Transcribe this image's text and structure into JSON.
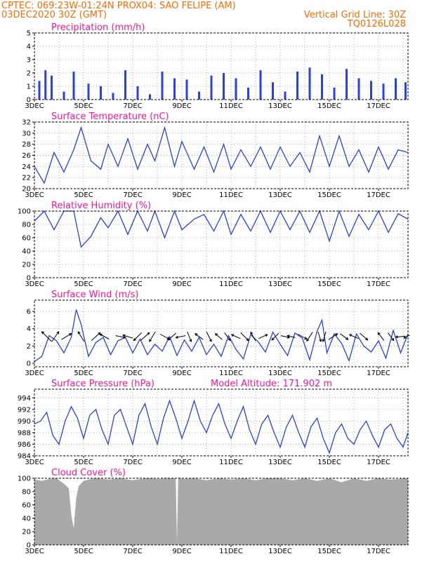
{
  "header": {
    "line1_left": "CPTEC:   069:23W-01:24N   PROX04: SAO FELIPE (AM)",
    "line2_left": "03DEC2020 30Z (GMT)",
    "line2_right": "Vertical Grid Line: 30Z",
    "line3_right": "TQ0126L028"
  },
  "colors": {
    "header": "#ff6a00",
    "panel_title": "#ff1493",
    "line": "#2a3fe8",
    "cloud": "#a9a9a9"
  },
  "x_tick_labels": [
    "3DEC",
    "5DEC",
    "7DEC",
    "9DEC",
    "11DEC",
    "13DEC",
    "15DEC",
    "17DEC"
  ],
  "chart_data": [
    {
      "id": "precip",
      "type": "bar",
      "title": "Precipitation (mm/h)",
      "x_range_days": [
        3,
        18.2
      ],
      "ylim": [
        0,
        5
      ],
      "yticks": [
        "0",
        "1",
        "2",
        "3",
        "4",
        "5"
      ],
      "x": [
        3.2,
        3.45,
        3.7,
        4.2,
        4.6,
        5.2,
        5.7,
        6.2,
        6.7,
        7.2,
        7.7,
        8.2,
        8.7,
        9.2,
        9.7,
        10.2,
        10.7,
        11.2,
        11.7,
        12.2,
        12.7,
        13.2,
        13.7,
        14.2,
        14.7,
        15.2,
        15.7,
        16.2,
        16.7,
        17.2,
        17.7,
        18.1
      ],
      "values": [
        1.4,
        2.2,
        1.8,
        0.6,
        2.1,
        1.2,
        1.0,
        0.5,
        2.2,
        1.0,
        0.4,
        2.1,
        1.6,
        1.5,
        0.6,
        1.8,
        2.0,
        1.6,
        0.9,
        2.2,
        1.3,
        0.6,
        2.1,
        2.4,
        1.9,
        0.9,
        2.3,
        1.6,
        1.4,
        1.2,
        1.6,
        1.3
      ]
    },
    {
      "id": "temp",
      "type": "line",
      "title": "Surface Temperature (nC)",
      "x_range_days": [
        3,
        18.2
      ],
      "ylim": [
        20,
        32
      ],
      "yticks": [
        "20",
        "22",
        "24",
        "26",
        "28",
        "30",
        "32"
      ],
      "x": [
        3.0,
        3.4,
        3.8,
        4.2,
        4.6,
        4.9,
        5.3,
        5.7,
        6.0,
        6.4,
        6.8,
        7.2,
        7.6,
        7.9,
        8.3,
        8.7,
        9.0,
        9.5,
        9.9,
        10.3,
        10.7,
        11.0,
        11.4,
        11.8,
        12.2,
        12.6,
        13.0,
        13.4,
        13.8,
        14.2,
        14.6,
        15.0,
        15.4,
        15.8,
        16.2,
        16.6,
        17.0,
        17.4,
        17.8,
        18.2
      ],
      "values": [
        24,
        21,
        26.5,
        23,
        27,
        31,
        25,
        23.5,
        28,
        24,
        29,
        23.5,
        28,
        25,
        31,
        24,
        28.5,
        23.5,
        27.5,
        23,
        28,
        23.5,
        27,
        24,
        27.5,
        23.5,
        27.5,
        24,
        26.5,
        23,
        29.5,
        24,
        29.5,
        24,
        27,
        23,
        27.5,
        23.5,
        27,
        26.5
      ]
    },
    {
      "id": "rh",
      "type": "line",
      "title": "Relative Humidity (%)",
      "x_range_days": [
        3,
        18.2
      ],
      "ylim": [
        0,
        100
      ],
      "yticks": [
        "0",
        "20",
        "40",
        "60",
        "80",
        "100"
      ],
      "x": [
        3.0,
        3.4,
        3.8,
        4.2,
        4.6,
        4.9,
        5.3,
        5.7,
        6.0,
        6.4,
        6.8,
        7.2,
        7.6,
        7.9,
        8.3,
        8.7,
        9.0,
        9.5,
        9.9,
        10.3,
        10.7,
        11.0,
        11.4,
        11.8,
        12.2,
        12.6,
        13.0,
        13.4,
        13.8,
        14.2,
        14.6,
        15.0,
        15.4,
        15.8,
        16.2,
        16.6,
        17.0,
        17.4,
        17.8,
        18.2
      ],
      "values": [
        85,
        100,
        72,
        100,
        100,
        46,
        62,
        90,
        75,
        100,
        65,
        100,
        70,
        100,
        60,
        100,
        72,
        88,
        95,
        70,
        100,
        65,
        95,
        70,
        100,
        68,
        100,
        72,
        100,
        68,
        100,
        55,
        100,
        62,
        95,
        72,
        100,
        68,
        96,
        88
      ]
    },
    {
      "id": "wind",
      "type": "line",
      "title": "Surface Wind (m/s)",
      "x_range_days": [
        3,
        18.2
      ],
      "ylim": [
        -0.4,
        7.3
      ],
      "yticks": [
        "0",
        "2",
        "4",
        "6"
      ],
      "x": [
        3.0,
        3.3,
        3.6,
        3.9,
        4.2,
        4.5,
        4.7,
        4.9,
        5.2,
        5.5,
        5.8,
        6.1,
        6.4,
        6.7,
        7.0,
        7.3,
        7.6,
        7.9,
        8.2,
        8.5,
        8.8,
        9.1,
        9.4,
        9.7,
        10.0,
        10.3,
        10.6,
        10.9,
        11.2,
        11.5,
        11.8,
        12.1,
        12.4,
        12.7,
        13.0,
        13.3,
        13.6,
        13.9,
        14.2,
        14.5,
        14.7,
        14.9,
        15.2,
        15.5,
        15.8,
        16.1,
        16.4,
        16.7,
        17.0,
        17.3,
        17.6,
        17.9,
        18.2
      ],
      "values": [
        0.2,
        0.8,
        3.2,
        2.6,
        1.2,
        3.0,
        6.2,
        4.5,
        0.8,
        2.4,
        3.0,
        1.0,
        2.6,
        3.0,
        1.2,
        2.8,
        1.0,
        2.2,
        1.4,
        3.1,
        0.9,
        2.7,
        1.4,
        3.0,
        1.0,
        2.2,
        0.8,
        3.2,
        1.6,
        0.5,
        3.3,
        2.5,
        1.3,
        3.6,
        2.2,
        0.9,
        3.5,
        2.9,
        0.4,
        3.7,
        5.0,
        1.2,
        3.4,
        2.3,
        0.3,
        3.4,
        2.0,
        1.3,
        2.6,
        0.6,
        3.8,
        1.2,
        3.4
      ]
    },
    {
      "id": "press",
      "type": "line",
      "title": "Surface Pressure (hPa)",
      "annotation": "Model Altitude: 171.902 m",
      "x_range_days": [
        3,
        18.2
      ],
      "ylim": [
        984,
        995.5
      ],
      "yticks": [
        "984",
        "986",
        "988",
        "990",
        "992",
        "994"
      ],
      "x": [
        3.0,
        3.25,
        3.5,
        3.75,
        4.0,
        4.25,
        4.5,
        4.75,
        5.0,
        5.25,
        5.5,
        5.75,
        6.0,
        6.25,
        6.5,
        6.75,
        7.0,
        7.25,
        7.5,
        7.75,
        8.0,
        8.25,
        8.5,
        8.75,
        9.0,
        9.25,
        9.5,
        9.75,
        10.0,
        10.25,
        10.5,
        10.75,
        11.0,
        11.25,
        11.5,
        11.75,
        12.0,
        12.25,
        12.5,
        12.75,
        13.0,
        13.25,
        13.5,
        13.75,
        14.0,
        14.25,
        14.5,
        14.75,
        15.0,
        15.25,
        15.5,
        15.75,
        16.0,
        16.25,
        16.5,
        16.75,
        17.0,
        17.25,
        17.5,
        17.75,
        18.0,
        18.2
      ],
      "values": [
        989.5,
        990,
        991.5,
        987.5,
        986,
        990,
        992.5,
        990.5,
        987,
        991,
        992,
        988.5,
        986,
        991,
        992,
        989,
        986,
        991,
        993,
        989,
        986,
        990.5,
        993.5,
        990.5,
        987,
        990,
        993.5,
        990,
        988,
        991,
        993,
        989.5,
        987,
        990,
        992.5,
        988.5,
        986,
        989.5,
        991,
        988,
        985.5,
        989,
        991,
        988,
        985.5,
        989,
        990.5,
        987,
        984.5,
        988,
        989.5,
        987,
        986,
        988.5,
        990,
        987.5,
        985.5,
        988.5,
        989.5,
        987,
        985.5,
        988
      ]
    },
    {
      "id": "cloud",
      "type": "area",
      "title": "Cloud Cover (%)",
      "x_range_days": [
        3,
        18.2
      ],
      "ylim": [
        0,
        100
      ],
      "yticks": [
        "0",
        "20",
        "40",
        "60",
        "80",
        "100"
      ],
      "x": [
        3.0,
        3.3,
        3.6,
        3.9,
        4.2,
        4.4,
        4.5,
        4.6,
        4.7,
        4.8,
        5.0,
        5.3,
        5.6,
        6.0,
        6.5,
        7.0,
        7.5,
        8.0,
        8.5,
        8.75,
        8.8,
        8.85,
        9.0,
        9.5,
        10.0,
        10.5,
        11.0,
        11.5,
        12.0,
        12.5,
        13.0,
        13.5,
        14.0,
        14.5,
        15.0,
        15.5,
        16.0,
        16.5,
        17.0,
        17.5,
        18.2
      ],
      "values": [
        98,
        96,
        99,
        100,
        92,
        85,
        45,
        25,
        70,
        88,
        96,
        99,
        100,
        98,
        100,
        97,
        100,
        99,
        100,
        100,
        4,
        100,
        99,
        100,
        97,
        100,
        98,
        100,
        97,
        100,
        100,
        97,
        100,
        96,
        100,
        94,
        100,
        96,
        100,
        98,
        100
      ]
    }
  ]
}
